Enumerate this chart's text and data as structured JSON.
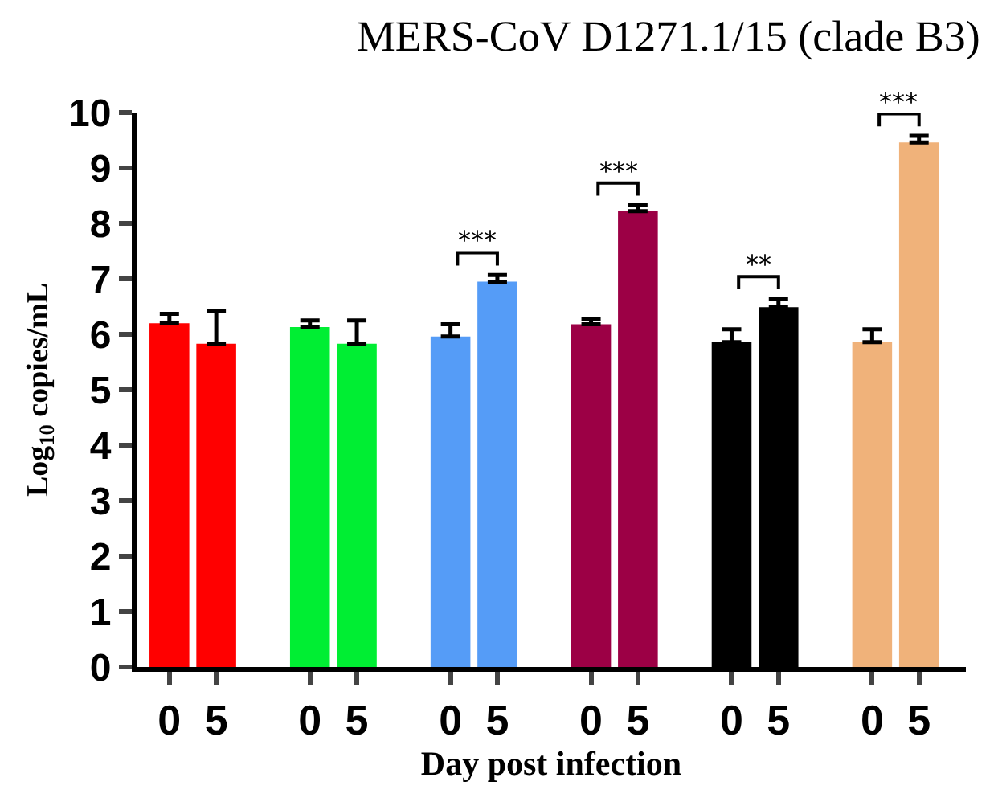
{
  "chart_data": {
    "type": "bar",
    "title": "MERS-CoV D1271.1/15 (clade B3)",
    "xlabel": "Day post infection",
    "ylabel": "Log$_{10}$ copies/mL",
    "categories": [
      "0",
      "5",
      "0",
      "5",
      "0",
      "5",
      "0",
      "5",
      "0",
      "5",
      "0",
      "5"
    ],
    "values": [
      6.2,
      5.83,
      6.13,
      5.83,
      5.96,
      6.95,
      6.18,
      8.22,
      5.86,
      6.49,
      5.86,
      9.46
    ],
    "colors": [
      "#ff0000",
      "#ff0000",
      "#00ee33",
      "#00ee33",
      "#559cf7",
      "#559cf7",
      "#9c0045",
      "#9c0045",
      "#000000",
      "#000000",
      "#f0b27a",
      "#f0b27a"
    ],
    "errors": [
      [
        6.2,
        6.37
      ],
      [
        5.83,
        6.42
      ],
      [
        6.13,
        6.25
      ],
      [
        5.83,
        6.25
      ],
      [
        5.96,
        6.18
      ],
      [
        6.95,
        7.07
      ],
      [
        6.18,
        6.27
      ],
      [
        8.22,
        8.33
      ],
      [
        5.86,
        6.09
      ],
      [
        6.49,
        6.64
      ],
      [
        5.86,
        6.09
      ],
      [
        9.46,
        9.58
      ]
    ],
    "annotations": [
      "***",
      "***",
      "**",
      "***"
    ],
    "ylim": [
      0,
      10
    ],
    "yticks": [
      0,
      1,
      2,
      3,
      4,
      5,
      6,
      7,
      8,
      9,
      10
    ]
  }
}
